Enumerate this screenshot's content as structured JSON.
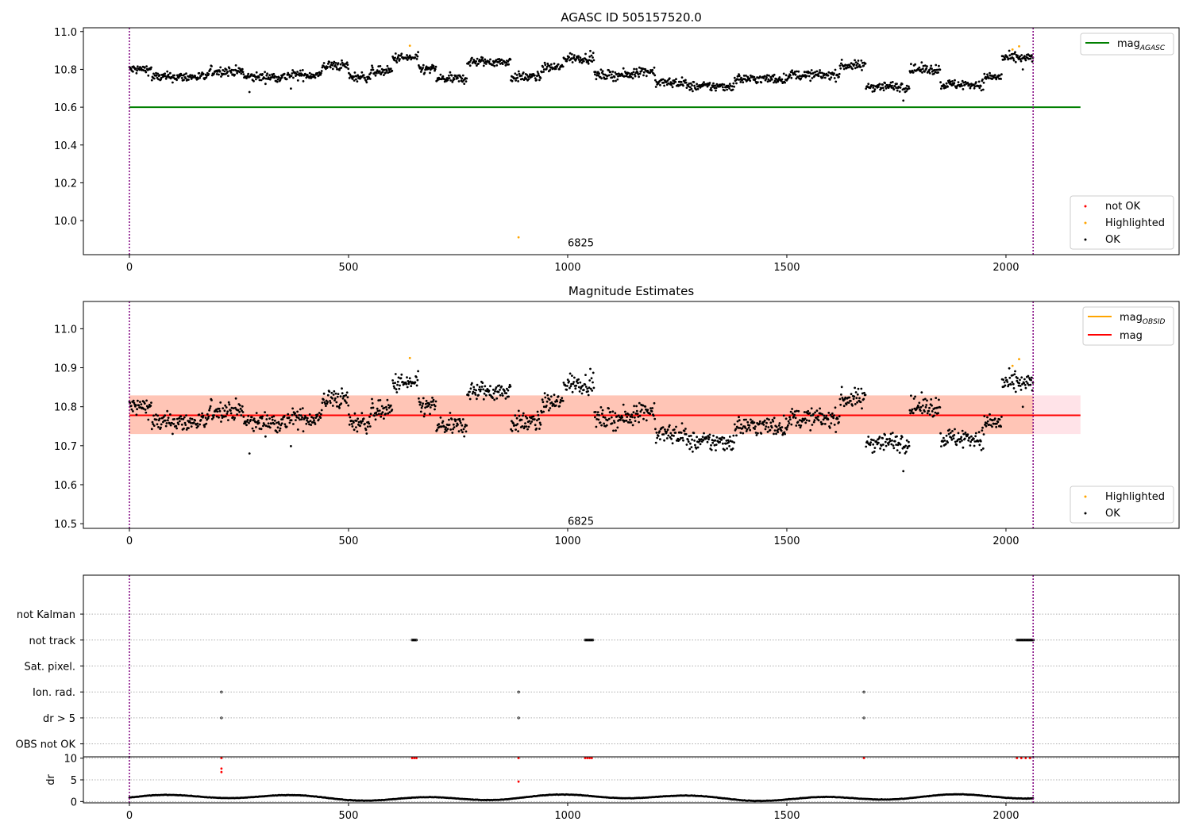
{
  "chart_data": [
    {
      "type": "scatter",
      "title": "AGASC ID 505157520.0",
      "xlim": [
        -105,
        2395
      ],
      "ylim": [
        9.82,
        11.02
      ],
      "xticks": [
        0,
        500,
        1000,
        1500,
        2000
      ],
      "yticks": [
        10.0,
        10.2,
        10.4,
        10.6,
        10.8,
        11.0
      ],
      "ytick_labels": [
        "10.0",
        "10.2",
        "10.4",
        "10.6",
        "10.8",
        "11.0"
      ],
      "vlines": [
        0,
        2062
      ],
      "annotation": {
        "text": "6825",
        "x": 1000,
        "y": 9.88
      },
      "hline": {
        "name": "mag_AGASC",
        "label": "mag",
        "subscript": "AGASC",
        "y": 10.6,
        "x_range": [
          0,
          2170
        ],
        "color": "#008000"
      },
      "series": [
        {
          "name": "not OK",
          "color": "#ff0000",
          "points": []
        },
        {
          "name": "Highlighted",
          "color": "#ffa500",
          "points": [
            [
              640,
              10.925
            ],
            [
              888,
              9.912
            ],
            [
              2015,
              10.905
            ],
            [
              2030,
              10.922
            ]
          ]
        },
        {
          "name": "OK",
          "color": "#000000",
          "points": []
        }
      ],
      "legend_upper": [
        "mag_AGASC"
      ],
      "legend_lower": [
        "not OK",
        "Highlighted",
        "OK"
      ]
    },
    {
      "type": "scatter",
      "title": "Magnitude Estimates",
      "xlim": [
        -105,
        2395
      ],
      "ylim": [
        10.488,
        11.07
      ],
      "xticks": [
        0,
        500,
        1000,
        1500,
        2000
      ],
      "yticks": [
        10.5,
        10.6,
        10.7,
        10.8,
        10.9,
        11.0
      ],
      "ytick_labels": [
        "10.5",
        "10.6",
        "10.7",
        "10.8",
        "10.9",
        "11.0"
      ],
      "vlines": [
        0,
        2062
      ],
      "annotation": {
        "text": "6825",
        "x": 1000,
        "y": 10.505
      },
      "band_obsid": {
        "y_range": [
          10.73,
          10.829
        ],
        "x_range": [
          0,
          2062
        ],
        "color": "#ffa07a"
      },
      "band_mag": {
        "y_range": [
          10.73,
          10.829
        ],
        "x_range": [
          0,
          2170
        ],
        "color": "#ffc0cb"
      },
      "line_obsid": {
        "name": "mag_OBSID",
        "label": "mag",
        "subscript": "OBSID",
        "y": 10.778,
        "color": "#ffa500"
      },
      "line_mag": {
        "name": "mag",
        "label": "mag",
        "y": 10.778,
        "x_range": [
          0,
          2170
        ],
        "color": "#ff0000"
      },
      "series": [
        {
          "name": "Highlighted",
          "color": "#ffa500",
          "points": [
            [
              640,
              10.925
            ],
            [
              2015,
              10.905
            ],
            [
              2030,
              10.922
            ]
          ]
        },
        {
          "name": "OK",
          "color": "#000000",
          "points": []
        }
      ],
      "legend_upper": [
        "mag_OBSID",
        "mag"
      ],
      "legend_lower": [
        "Highlighted",
        "OK"
      ]
    },
    {
      "type": "scatter",
      "xlim": [
        -105,
        2395
      ],
      "ylim": [
        -0.5,
        6.5
      ],
      "categories": [
        "OBS not OK",
        "dr > 5",
        "Ion. rad.",
        "Sat. pixel.",
        "not track",
        "not Kalman"
      ],
      "vlines": [
        0,
        2062
      ],
      "flag_marks": [
        {
          "category": "not track",
          "x_ranges": [
            [
              645,
              657
            ],
            [
              1040,
              1058
            ],
            [
              2025,
              2063
            ]
          ]
        },
        {
          "category": "Ion. rad.",
          "x_ranges": [
            [
              210,
              210
            ],
            [
              888,
              888
            ],
            [
              1676,
              1676
            ]
          ]
        },
        {
          "category": "dr > 5",
          "x_ranges": [
            [
              210,
              210
            ],
            [
              888,
              888
            ],
            [
              1676,
              1676
            ]
          ]
        }
      ]
    },
    {
      "type": "scatter",
      "ylabel": "dr",
      "xlim": [
        -105,
        2395
      ],
      "ylim": [
        -0.3,
        10.3
      ],
      "xticks": [
        0,
        500,
        1000,
        1500,
        2000
      ],
      "yticks": [
        0,
        5,
        10
      ],
      "ytick_labels": [
        "0",
        "5",
        "10"
      ],
      "vlines": [
        0,
        2062
      ],
      "series": [
        {
          "name": "dr bad",
          "color": "#ff0000",
          "points": [
            [
              210,
              10
            ],
            [
              210,
              7.6
            ],
            [
              210,
              6.8
            ],
            [
              645,
              10
            ],
            [
              650,
              10
            ],
            [
              655,
              10
            ],
            [
              888,
              10
            ],
            [
              888,
              4.6
            ],
            [
              1040,
              10
            ],
            [
              1045,
              10
            ],
            [
              1050,
              10
            ],
            [
              1055,
              10
            ],
            [
              1676,
              10
            ],
            [
              2025,
              10
            ],
            [
              2035,
              10
            ],
            [
              2045,
              10
            ],
            [
              2055,
              10
            ]
          ]
        },
        {
          "name": "dr",
          "color": "#000000",
          "points": []
        }
      ]
    }
  ]
}
